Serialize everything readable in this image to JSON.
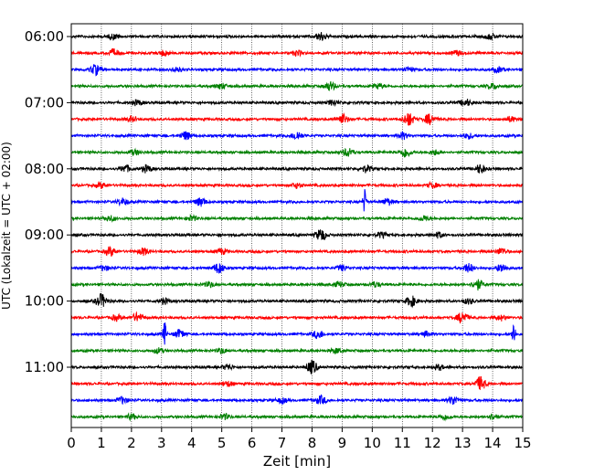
{
  "chart_data": {
    "type": "line",
    "title": "",
    "xlabel": "Zeit  [min]",
    "ylabel": "UTC (Lokalzeit = UTC + 02:00)",
    "xlim": [
      0,
      15
    ],
    "x_ticks": [
      0,
      1,
      2,
      3,
      4,
      5,
      6,
      7,
      8,
      9,
      10,
      11,
      12,
      13,
      14,
      15
    ],
    "x_grid": true,
    "y_ticks": [
      "06:00",
      "07:00",
      "08:00",
      "09:00",
      "10:00",
      "11:00"
    ],
    "traces_per_hour": 4,
    "trace_interval_min": 15,
    "trace_colors": [
      "#000000",
      "#ff0000",
      "#0000ff",
      "#008000"
    ],
    "traces": [
      {
        "start": "06:00",
        "color": "#000000",
        "events": [
          {
            "t": 1.4,
            "a": 0.3
          },
          {
            "t": 8.3,
            "a": 0.5
          },
          {
            "t": 13.9,
            "a": 0.3
          }
        ]
      },
      {
        "start": "06:15",
        "color": "#ff0000",
        "events": [
          {
            "t": 1.4,
            "a": 0.4
          },
          {
            "t": 3.1,
            "a": 0.3
          },
          {
            "t": 7.5,
            "a": 0.3
          },
          {
            "t": 12.8,
            "a": 0.3
          }
        ]
      },
      {
        "start": "06:30",
        "color": "#0000ff",
        "events": [
          {
            "t": 0.8,
            "a": 0.6
          },
          {
            "t": 3.5,
            "a": 0.3
          },
          {
            "t": 11.2,
            "a": 0.3
          },
          {
            "t": 14.2,
            "a": 0.3
          }
        ]
      },
      {
        "start": "06:45",
        "color": "#008000",
        "events": [
          {
            "t": 5.0,
            "a": 0.3
          },
          {
            "t": 8.6,
            "a": 0.5
          },
          {
            "t": 10.2,
            "a": 0.3
          },
          {
            "t": 14.0,
            "a": 0.3
          }
        ]
      },
      {
        "start": "07:00",
        "color": "#000000",
        "events": [
          {
            "t": 2.2,
            "a": 0.3
          },
          {
            "t": 8.7,
            "a": 0.3
          },
          {
            "t": 13.1,
            "a": 0.4
          }
        ]
      },
      {
        "start": "07:15",
        "color": "#ff0000",
        "events": [
          {
            "t": 2.0,
            "a": 0.3
          },
          {
            "t": 9.0,
            "a": 0.6
          },
          {
            "t": 11.2,
            "a": 0.8
          },
          {
            "t": 11.9,
            "a": 0.6
          },
          {
            "t": 14.6,
            "a": 0.3
          }
        ]
      },
      {
        "start": "07:30",
        "color": "#0000ff",
        "events": [
          {
            "t": 3.8,
            "a": 0.5
          },
          {
            "t": 7.5,
            "a": 0.5
          },
          {
            "t": 11.0,
            "a": 0.4
          },
          {
            "t": 13.2,
            "a": 0.3
          }
        ]
      },
      {
        "start": "07:45",
        "color": "#008000",
        "events": [
          {
            "t": 2.1,
            "a": 0.3
          },
          {
            "t": 9.2,
            "a": 0.5
          },
          {
            "t": 11.1,
            "a": 0.6
          },
          {
            "t": 12.1,
            "a": 0.3
          }
        ]
      },
      {
        "start": "08:00",
        "color": "#000000",
        "events": [
          {
            "t": 1.8,
            "a": 0.4
          },
          {
            "t": 2.5,
            "a": 0.4
          },
          {
            "t": 9.8,
            "a": 0.4
          },
          {
            "t": 13.6,
            "a": 0.5
          }
        ]
      },
      {
        "start": "08:15",
        "color": "#ff0000",
        "events": [
          {
            "t": 1.0,
            "a": 0.3
          },
          {
            "t": 7.5,
            "a": 0.3
          },
          {
            "t": 12.0,
            "a": 0.3
          }
        ]
      },
      {
        "start": "08:30",
        "color": "#0000ff",
        "events": [
          {
            "t": 1.7,
            "a": 0.4
          },
          {
            "t": 4.3,
            "a": 0.5
          },
          {
            "t": 9.75,
            "a": 1.5
          },
          {
            "t": 10.5,
            "a": 0.4
          }
        ]
      },
      {
        "start": "08:45",
        "color": "#008000",
        "events": [
          {
            "t": 1.3,
            "a": 0.3
          },
          {
            "t": 4.0,
            "a": 0.3
          },
          {
            "t": 11.7,
            "a": 0.3
          }
        ]
      },
      {
        "start": "09:00",
        "color": "#000000",
        "events": [
          {
            "t": 8.3,
            "a": 0.7
          },
          {
            "t": 10.3,
            "a": 0.3
          },
          {
            "t": 12.2,
            "a": 0.3
          }
        ]
      },
      {
        "start": "09:15",
        "color": "#ff0000",
        "events": [
          {
            "t": 1.3,
            "a": 0.5
          },
          {
            "t": 2.4,
            "a": 0.4
          },
          {
            "t": 5.0,
            "a": 0.3
          },
          {
            "t": 14.3,
            "a": 0.4
          }
        ]
      },
      {
        "start": "09:30",
        "color": "#0000ff",
        "events": [
          {
            "t": 1.1,
            "a": 0.3
          },
          {
            "t": 4.9,
            "a": 0.6
          },
          {
            "t": 9.0,
            "a": 0.3
          },
          {
            "t": 13.2,
            "a": 0.5
          },
          {
            "t": 14.3,
            "a": 0.5
          }
        ]
      },
      {
        "start": "09:45",
        "color": "#008000",
        "events": [
          {
            "t": 4.6,
            "a": 0.3
          },
          {
            "t": 8.9,
            "a": 0.3
          },
          {
            "t": 10.1,
            "a": 0.3
          },
          {
            "t": 13.5,
            "a": 0.6
          }
        ]
      },
      {
        "start": "10:00",
        "color": "#000000",
        "events": [
          {
            "t": 1.0,
            "a": 0.8
          },
          {
            "t": 3.1,
            "a": 0.3
          },
          {
            "t": 11.3,
            "a": 0.6
          },
          {
            "t": 13.2,
            "a": 0.3
          }
        ]
      },
      {
        "start": "10:15",
        "color": "#ff0000",
        "events": [
          {
            "t": 1.5,
            "a": 0.3
          },
          {
            "t": 2.2,
            "a": 0.5
          },
          {
            "t": 13.0,
            "a": 0.7
          },
          {
            "t": 14.3,
            "a": 0.3
          }
        ]
      },
      {
        "start": "10:30",
        "color": "#0000ff",
        "events": [
          {
            "t": 3.1,
            "a": 1.5
          },
          {
            "t": 3.6,
            "a": 0.5
          },
          {
            "t": 8.2,
            "a": 0.5
          },
          {
            "t": 11.8,
            "a": 0.3
          },
          {
            "t": 14.7,
            "a": 1.6
          }
        ]
      },
      {
        "start": "10:45",
        "color": "#008000",
        "events": [
          {
            "t": 2.9,
            "a": 0.3
          },
          {
            "t": 5.0,
            "a": 0.3
          },
          {
            "t": 8.8,
            "a": 0.3
          }
        ]
      },
      {
        "start": "11:00",
        "color": "#000000",
        "events": [
          {
            "t": 5.2,
            "a": 0.3
          },
          {
            "t": 8.0,
            "a": 0.8
          },
          {
            "t": 12.2,
            "a": 0.3
          }
        ]
      },
      {
        "start": "11:15",
        "color": "#ff0000",
        "events": [
          {
            "t": 5.2,
            "a": 0.3
          },
          {
            "t": 13.6,
            "a": 0.8
          }
        ]
      },
      {
        "start": "11:30",
        "color": "#0000ff",
        "events": [
          {
            "t": 1.7,
            "a": 0.4
          },
          {
            "t": 7.0,
            "a": 0.3
          },
          {
            "t": 8.3,
            "a": 0.5
          },
          {
            "t": 12.7,
            "a": 0.5
          }
        ]
      },
      {
        "start": "11:45",
        "color": "#008000",
        "events": [
          {
            "t": 2.0,
            "a": 0.3
          },
          {
            "t": 5.1,
            "a": 0.3
          },
          {
            "t": 12.4,
            "a": 0.3
          },
          {
            "t": 14.0,
            "a": 0.3
          }
        ]
      }
    ]
  }
}
